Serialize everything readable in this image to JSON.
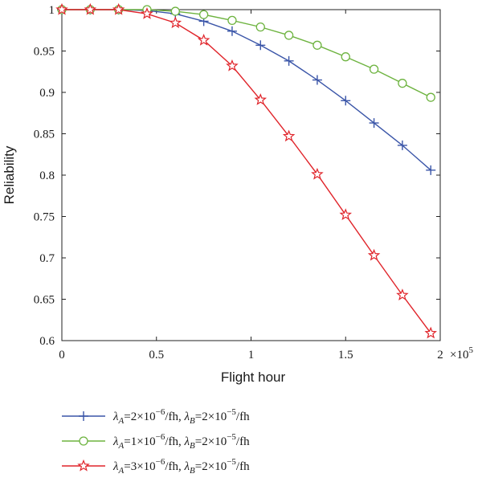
{
  "chart_data": {
    "type": "line",
    "xlabel": "Flight hour",
    "ylabel": "Reliability",
    "x_multiplier_label": "×10",
    "x_multiplier_exp": "5",
    "xlim": [
      0,
      200000
    ],
    "ylim": [
      0.6,
      1.0
    ],
    "xticks": [
      0,
      50000,
      100000,
      150000,
      200000
    ],
    "xtick_labels": [
      "0",
      "0.5",
      "1",
      "1.5",
      "2"
    ],
    "yticks": [
      0.6,
      0.65,
      0.7,
      0.75,
      0.8,
      0.85,
      0.9,
      0.95,
      1.0
    ],
    "ytick_labels": [
      "0.6",
      "0.65",
      "0.7",
      "0.75",
      "0.8",
      "0.85",
      "0.9",
      "0.95",
      "1"
    ],
    "grid": false,
    "legend_position": "below",
    "x": [
      0,
      15000,
      30000,
      45000,
      60000,
      75000,
      90000,
      105000,
      120000,
      135000,
      150000,
      165000,
      180000,
      195000
    ],
    "series": [
      {
        "name_parts": {
          "a_sym": "λ",
          "a_sub": "A",
          "a_mid": "=2×10",
          "a_exp": "−6",
          "b_pre": "/fh, ",
          "b_sym": "λ",
          "b_sub": "B",
          "b_mid": "=2×10",
          "b_exp": "−5",
          "b_post": "/fh"
        },
        "color": "#3a55a8",
        "marker": "plus",
        "values": [
          1.0,
          1.0,
          1.0,
          0.999,
          0.995,
          0.986,
          0.974,
          0.957,
          0.938,
          0.915,
          0.89,
          0.863,
          0.836,
          0.806
        ]
      },
      {
        "name_parts": {
          "a_sym": "λ",
          "a_sub": "A",
          "a_mid": "=1×10",
          "a_exp": "−6",
          "b_pre": "/fh, ",
          "b_sym": "λ",
          "b_sub": "B",
          "b_mid": "=2×10",
          "b_exp": "−5",
          "b_post": "/fh"
        },
        "color": "#6db33f",
        "marker": "circle",
        "values": [
          1.0,
          1.0,
          1.0,
          1.0,
          0.998,
          0.994,
          0.987,
          0.979,
          0.969,
          0.957,
          0.943,
          0.928,
          0.911,
          0.894
        ]
      },
      {
        "name_parts": {
          "a_sym": "λ",
          "a_sub": "A",
          "a_mid": "=3×10",
          "a_exp": "−6",
          "b_pre": "/fh, ",
          "b_sym": "λ",
          "b_sub": "B",
          "b_mid": "=2×10",
          "b_exp": "−5",
          "b_post": "/fh"
        },
        "color": "#e0242a",
        "marker": "star",
        "values": [
          1.0,
          1.0,
          1.0,
          0.995,
          0.984,
          0.963,
          0.932,
          0.891,
          0.847,
          0.801,
          0.752,
          0.703,
          0.655,
          0.609
        ]
      }
    ]
  }
}
